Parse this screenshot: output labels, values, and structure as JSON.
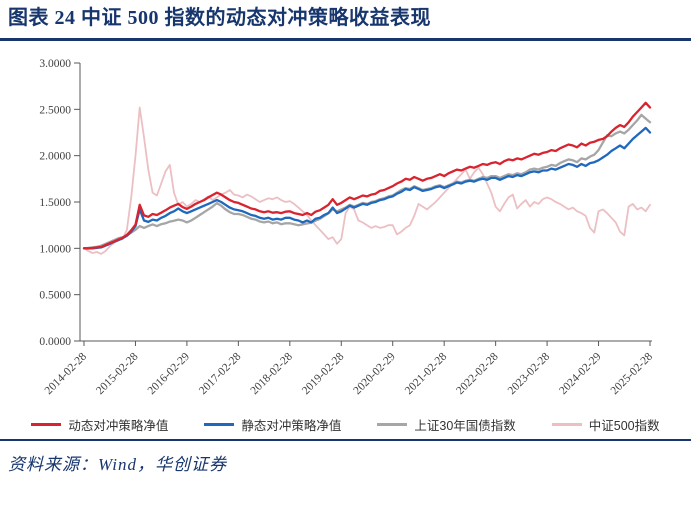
{
  "header": {
    "title": "图表 24  中证 500 指数的动态对冲策略收益表现"
  },
  "footer": {
    "source": "资料来源：Wind，华创证券"
  },
  "colors": {
    "accent_navy": "#17366d",
    "series_red": "#d9232e",
    "series_blue": "#1f68bd",
    "series_gray": "#a6a6a6",
    "series_pink": "#ecbfc3",
    "axis": "#595959",
    "tick_text": "#404040",
    "legend_text": "#333333"
  },
  "chart_data": {
    "type": "line",
    "title": "中证500指数的动态对冲策略收益表现",
    "xlabel": "",
    "ylabel": "",
    "ylim": [
      0,
      3
    ],
    "grid": false,
    "legend_position": "bottom",
    "x_start_month": "2014-02",
    "x_end_month": "2025-02",
    "x_points_are_monthly": true,
    "y_ticks": [
      "0.0000",
      "0.5000",
      "1.0000",
      "1.5000",
      "2.0000",
      "2.5000",
      "3.0000"
    ],
    "x_tick_labels": [
      "2014-02-28",
      "2015-02-28",
      "2016-02-29",
      "2017-02-28",
      "2018-02-28",
      "2019-02-28",
      "2020-02-29",
      "2021-02-28",
      "2022-02-28",
      "2023-02-28",
      "2024-02-29",
      "2025-02-28"
    ],
    "x_tick_indices": [
      0,
      12,
      24,
      36,
      48,
      60,
      72,
      84,
      96,
      108,
      120,
      132
    ],
    "series": [
      {
        "key": "dynamic-hedge",
        "name": "动态对冲策略净值",
        "color": "#d9232e",
        "width": 2.3,
        "values": [
          1.0,
          1.0,
          1.005,
          1.01,
          1.015,
          1.035,
          1.055,
          1.075,
          1.095,
          1.115,
          1.145,
          1.195,
          1.255,
          1.47,
          1.355,
          1.34,
          1.37,
          1.36,
          1.385,
          1.41,
          1.44,
          1.46,
          1.48,
          1.445,
          1.425,
          1.45,
          1.48,
          1.5,
          1.52,
          1.55,
          1.575,
          1.6,
          1.58,
          1.55,
          1.52,
          1.5,
          1.49,
          1.47,
          1.45,
          1.43,
          1.42,
          1.4,
          1.39,
          1.4,
          1.385,
          1.39,
          1.38,
          1.395,
          1.4,
          1.38,
          1.37,
          1.36,
          1.38,
          1.36,
          1.395,
          1.41,
          1.44,
          1.47,
          1.53,
          1.47,
          1.49,
          1.52,
          1.55,
          1.53,
          1.55,
          1.57,
          1.56,
          1.58,
          1.59,
          1.62,
          1.63,
          1.65,
          1.67,
          1.7,
          1.72,
          1.75,
          1.74,
          1.77,
          1.75,
          1.73,
          1.75,
          1.76,
          1.78,
          1.8,
          1.78,
          1.81,
          1.83,
          1.85,
          1.84,
          1.86,
          1.88,
          1.87,
          1.89,
          1.91,
          1.9,
          1.92,
          1.93,
          1.91,
          1.94,
          1.96,
          1.95,
          1.97,
          1.96,
          1.98,
          2.0,
          2.02,
          2.01,
          2.03,
          2.04,
          2.06,
          2.05,
          2.08,
          2.1,
          2.12,
          2.11,
          2.09,
          2.13,
          2.11,
          2.14,
          2.15,
          2.17,
          2.18,
          2.21,
          2.26,
          2.3,
          2.33,
          2.31,
          2.36,
          2.42,
          2.47,
          2.52,
          2.57,
          2.52
        ]
      },
      {
        "key": "static-hedge",
        "name": "静态对冲策略净值",
        "color": "#1f68bd",
        "width": 2.3,
        "values": [
          1.0,
          0.998,
          1.0,
          1.005,
          1.01,
          1.028,
          1.048,
          1.068,
          1.088,
          1.108,
          1.135,
          1.18,
          1.24,
          1.42,
          1.3,
          1.285,
          1.31,
          1.3,
          1.33,
          1.35,
          1.38,
          1.4,
          1.43,
          1.4,
          1.38,
          1.4,
          1.42,
          1.44,
          1.46,
          1.48,
          1.5,
          1.52,
          1.5,
          1.47,
          1.44,
          1.42,
          1.41,
          1.4,
          1.38,
          1.36,
          1.35,
          1.33,
          1.32,
          1.33,
          1.31,
          1.32,
          1.31,
          1.33,
          1.33,
          1.31,
          1.3,
          1.28,
          1.3,
          1.28,
          1.32,
          1.33,
          1.36,
          1.38,
          1.44,
          1.38,
          1.4,
          1.43,
          1.46,
          1.44,
          1.46,
          1.48,
          1.47,
          1.49,
          1.5,
          1.52,
          1.53,
          1.55,
          1.56,
          1.59,
          1.61,
          1.64,
          1.63,
          1.66,
          1.64,
          1.62,
          1.63,
          1.64,
          1.66,
          1.67,
          1.65,
          1.67,
          1.69,
          1.71,
          1.7,
          1.72,
          1.73,
          1.72,
          1.74,
          1.75,
          1.74,
          1.76,
          1.76,
          1.74,
          1.76,
          1.78,
          1.77,
          1.79,
          1.78,
          1.8,
          1.82,
          1.83,
          1.82,
          1.84,
          1.84,
          1.86,
          1.85,
          1.87,
          1.89,
          1.91,
          1.9,
          1.88,
          1.91,
          1.89,
          1.92,
          1.93,
          1.95,
          1.98,
          2.01,
          2.05,
          2.08,
          2.11,
          2.08,
          2.13,
          2.18,
          2.22,
          2.26,
          2.3,
          2.25
        ]
      },
      {
        "key": "bond-index-30y",
        "name": "上证30年国债指数",
        "color": "#a6a6a6",
        "width": 2.3,
        "values": [
          1.0,
          1.005,
          1.01,
          1.018,
          1.028,
          1.048,
          1.068,
          1.088,
          1.108,
          1.12,
          1.14,
          1.17,
          1.2,
          1.24,
          1.22,
          1.24,
          1.258,
          1.24,
          1.26,
          1.27,
          1.288,
          1.298,
          1.31,
          1.3,
          1.28,
          1.3,
          1.33,
          1.36,
          1.39,
          1.42,
          1.45,
          1.488,
          1.46,
          1.42,
          1.39,
          1.37,
          1.37,
          1.36,
          1.34,
          1.32,
          1.31,
          1.29,
          1.28,
          1.29,
          1.27,
          1.28,
          1.26,
          1.27,
          1.27,
          1.26,
          1.25,
          1.258,
          1.268,
          1.278,
          1.298,
          1.318,
          1.348,
          1.378,
          1.42,
          1.4,
          1.42,
          1.44,
          1.47,
          1.45,
          1.47,
          1.49,
          1.48,
          1.5,
          1.51,
          1.53,
          1.54,
          1.56,
          1.57,
          1.6,
          1.63,
          1.65,
          1.64,
          1.67,
          1.65,
          1.63,
          1.64,
          1.65,
          1.67,
          1.68,
          1.66,
          1.68,
          1.7,
          1.72,
          1.71,
          1.73,
          1.74,
          1.73,
          1.75,
          1.77,
          1.76,
          1.78,
          1.78,
          1.76,
          1.78,
          1.8,
          1.79,
          1.81,
          1.8,
          1.82,
          1.85,
          1.86,
          1.85,
          1.87,
          1.88,
          1.9,
          1.89,
          1.92,
          1.94,
          1.96,
          1.95,
          1.93,
          1.97,
          1.96,
          1.99,
          2.01,
          2.06,
          2.14,
          2.22,
          2.21,
          2.24,
          2.26,
          2.24,
          2.28,
          2.33,
          2.38,
          2.44,
          2.4,
          2.36
        ]
      },
      {
        "key": "csi500-index",
        "name": "中证500指数",
        "color": "#ecbfc3",
        "width": 1.8,
        "values": [
          1.0,
          0.97,
          0.95,
          0.96,
          0.94,
          0.97,
          1.02,
          1.06,
          1.09,
          1.1,
          1.2,
          1.55,
          2.0,
          2.52,
          2.2,
          1.85,
          1.6,
          1.57,
          1.7,
          1.83,
          1.9,
          1.6,
          1.47,
          1.5,
          1.45,
          1.48,
          1.52,
          1.5,
          1.53,
          1.56,
          1.52,
          1.55,
          1.58,
          1.6,
          1.63,
          1.58,
          1.57,
          1.55,
          1.58,
          1.56,
          1.53,
          1.5,
          1.52,
          1.54,
          1.53,
          1.55,
          1.52,
          1.5,
          1.51,
          1.48,
          1.44,
          1.4,
          1.36,
          1.3,
          1.25,
          1.2,
          1.15,
          1.1,
          1.12,
          1.05,
          1.1,
          1.38,
          1.45,
          1.42,
          1.3,
          1.28,
          1.25,
          1.22,
          1.24,
          1.22,
          1.23,
          1.25,
          1.25,
          1.15,
          1.18,
          1.22,
          1.25,
          1.35,
          1.48,
          1.45,
          1.42,
          1.46,
          1.5,
          1.55,
          1.6,
          1.65,
          1.7,
          1.75,
          1.8,
          1.85,
          1.75,
          1.82,
          1.87,
          1.8,
          1.7,
          1.6,
          1.45,
          1.4,
          1.48,
          1.55,
          1.58,
          1.43,
          1.48,
          1.52,
          1.45,
          1.5,
          1.48,
          1.53,
          1.55,
          1.53,
          1.5,
          1.48,
          1.45,
          1.42,
          1.44,
          1.4,
          1.38,
          1.35,
          1.22,
          1.17,
          1.4,
          1.42,
          1.38,
          1.33,
          1.28,
          1.18,
          1.14,
          1.45,
          1.48,
          1.42,
          1.44,
          1.4,
          1.47
        ]
      }
    ]
  }
}
